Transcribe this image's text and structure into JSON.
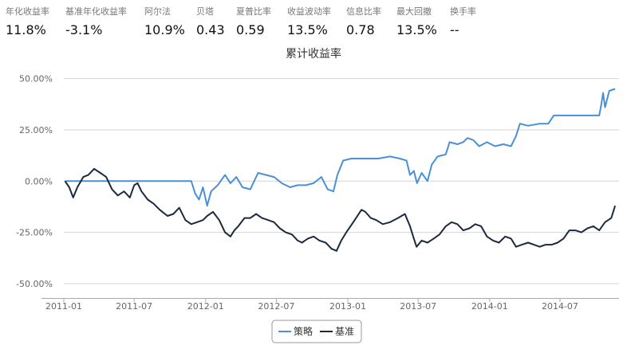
{
  "metrics": [
    {
      "label": "年化收益率",
      "value": "11.8%"
    },
    {
      "label": "基准年化收益率",
      "value": "-3.1%"
    },
    {
      "label": "阿尔法",
      "value": "10.9%"
    },
    {
      "label": "贝塔",
      "value": "0.43"
    },
    {
      "label": "夏普比率",
      "value": "0.59"
    },
    {
      "label": "收益波动率",
      "value": "13.5%"
    },
    {
      "label": "信息比率",
      "value": "0.78"
    },
    {
      "label": "最大回撤",
      "value": "13.5%"
    },
    {
      "label": "换手率",
      "value": "--"
    }
  ],
  "chart_data": {
    "type": "line",
    "title": "累计收益率",
    "y_ticks": [
      "50.00%",
      "25.00%",
      "0.00%",
      "-25.00%",
      "-50.00%"
    ],
    "y_tick_values": [
      50,
      25,
      0,
      -25,
      -50
    ],
    "ylim": [
      -57,
      58
    ],
    "xlim": [
      "2011-01-01",
      "2014-11-30"
    ],
    "x_ticks": [
      "2011-01",
      "2011-07",
      "2012-01",
      "2012-07",
      "2013-01",
      "2013-07",
      "2014-01",
      "2014-07"
    ],
    "x_tick_dates": [
      "2011-01-01",
      "2011-07-01",
      "2012-01-01",
      "2012-07-01",
      "2013-01-01",
      "2013-07-01",
      "2014-01-01",
      "2014-07-01"
    ],
    "grid": true,
    "legend_position": "bottom-center",
    "series": [
      {
        "name": "策略",
        "color": "#4a90d9",
        "points": [
          [
            "2011-01-04",
            0
          ],
          [
            "2011-11-25",
            0
          ],
          [
            "2011-12-05",
            -6
          ],
          [
            "2011-12-15",
            -9
          ],
          [
            "2011-12-25",
            -3
          ],
          [
            "2012-01-05",
            -12
          ],
          [
            "2012-01-15",
            -5
          ],
          [
            "2012-02-01",
            -2
          ],
          [
            "2012-02-20",
            3
          ],
          [
            "2012-03-05",
            -1
          ],
          [
            "2012-03-20",
            2
          ],
          [
            "2012-04-05",
            -3
          ],
          [
            "2012-04-25",
            -4
          ],
          [
            "2012-05-15",
            4
          ],
          [
            "2012-06-05",
            3
          ],
          [
            "2012-06-25",
            2
          ],
          [
            "2012-07-15",
            -1
          ],
          [
            "2012-08-05",
            -3
          ],
          [
            "2012-08-25",
            -2
          ],
          [
            "2012-09-15",
            -2
          ],
          [
            "2012-10-05",
            -1
          ],
          [
            "2012-10-25",
            2
          ],
          [
            "2012-11-10",
            -4
          ],
          [
            "2012-11-25",
            -5
          ],
          [
            "2012-12-05",
            3
          ],
          [
            "2012-12-20",
            10
          ],
          [
            "2013-01-10",
            11
          ],
          [
            "2013-02-15",
            11
          ],
          [
            "2013-03-20",
            11
          ],
          [
            "2013-04-20",
            12
          ],
          [
            "2013-05-15",
            11
          ],
          [
            "2013-06-01",
            10
          ],
          [
            "2013-06-10",
            3
          ],
          [
            "2013-06-20",
            5
          ],
          [
            "2013-06-28",
            -1
          ],
          [
            "2013-07-10",
            4
          ],
          [
            "2013-07-25",
            0
          ],
          [
            "2013-08-05",
            8
          ],
          [
            "2013-08-20",
            12
          ],
          [
            "2013-09-10",
            13
          ],
          [
            "2013-09-20",
            19
          ],
          [
            "2013-10-10",
            18
          ],
          [
            "2013-10-25",
            19
          ],
          [
            "2013-11-05",
            21
          ],
          [
            "2013-11-20",
            20
          ],
          [
            "2013-12-05",
            17
          ],
          [
            "2013-12-25",
            19
          ],
          [
            "2014-01-15",
            17
          ],
          [
            "2014-02-05",
            18
          ],
          [
            "2014-02-25",
            17
          ],
          [
            "2014-03-10",
            22
          ],
          [
            "2014-03-20",
            28
          ],
          [
            "2014-04-10",
            27
          ],
          [
            "2014-05-10",
            28
          ],
          [
            "2014-06-01",
            28
          ],
          [
            "2014-06-15",
            32
          ],
          [
            "2014-09-20",
            32
          ],
          [
            "2014-10-10",
            32
          ],
          [
            "2014-10-15",
            37
          ],
          [
            "2014-10-20",
            43
          ],
          [
            "2014-10-25",
            36
          ],
          [
            "2014-11-05",
            44
          ],
          [
            "2014-11-20",
            45
          ]
        ]
      },
      {
        "name": "基准",
        "color": "#1b2a3e",
        "points": [
          [
            "2011-01-04",
            0
          ],
          [
            "2011-01-15",
            -3
          ],
          [
            "2011-01-25",
            -8
          ],
          [
            "2011-02-05",
            -3
          ],
          [
            "2011-02-20",
            2
          ],
          [
            "2011-03-05",
            3
          ],
          [
            "2011-03-20",
            6
          ],
          [
            "2011-04-05",
            4
          ],
          [
            "2011-04-20",
            2
          ],
          [
            "2011-05-05",
            -4
          ],
          [
            "2011-05-20",
            -7
          ],
          [
            "2011-06-05",
            -5
          ],
          [
            "2011-06-20",
            -8
          ],
          [
            "2011-07-01",
            -2
          ],
          [
            "2011-07-10",
            -1
          ],
          [
            "2011-07-20",
            -5
          ],
          [
            "2011-08-05",
            -9
          ],
          [
            "2011-08-20",
            -11
          ],
          [
            "2011-09-05",
            -14
          ],
          [
            "2011-09-25",
            -17
          ],
          [
            "2011-10-10",
            -16
          ],
          [
            "2011-10-25",
            -13
          ],
          [
            "2011-11-10",
            -19
          ],
          [
            "2011-11-25",
            -21
          ],
          [
            "2011-12-10",
            -20
          ],
          [
            "2011-12-25",
            -19
          ],
          [
            "2012-01-05",
            -17
          ],
          [
            "2012-01-20",
            -15
          ],
          [
            "2012-02-05",
            -19
          ],
          [
            "2012-02-20",
            -25
          ],
          [
            "2012-03-05",
            -27
          ],
          [
            "2012-03-15",
            -24
          ],
          [
            "2012-03-25",
            -22
          ],
          [
            "2012-04-10",
            -18
          ],
          [
            "2012-04-25",
            -18
          ],
          [
            "2012-05-10",
            -16
          ],
          [
            "2012-05-25",
            -18
          ],
          [
            "2012-06-10",
            -19
          ],
          [
            "2012-06-25",
            -20
          ],
          [
            "2012-07-10",
            -23
          ],
          [
            "2012-07-25",
            -25
          ],
          [
            "2012-08-10",
            -26
          ],
          [
            "2012-08-25",
            -29
          ],
          [
            "2012-09-05",
            -30
          ],
          [
            "2012-09-20",
            -28
          ],
          [
            "2012-10-05",
            -27
          ],
          [
            "2012-10-20",
            -29
          ],
          [
            "2012-11-05",
            -30
          ],
          [
            "2012-11-20",
            -33
          ],
          [
            "2012-12-03",
            -34
          ],
          [
            "2012-12-15",
            -29
          ],
          [
            "2012-12-28",
            -25
          ],
          [
            "2013-01-15",
            -20
          ],
          [
            "2013-02-05",
            -14
          ],
          [
            "2013-02-15",
            -15
          ],
          [
            "2013-03-01",
            -18
          ],
          [
            "2013-03-15",
            -19
          ],
          [
            "2013-04-01",
            -21
          ],
          [
            "2013-04-20",
            -20
          ],
          [
            "2013-05-10",
            -18
          ],
          [
            "2013-05-28",
            -16
          ],
          [
            "2013-06-10",
            -22
          ],
          [
            "2013-06-20",
            -28
          ],
          [
            "2013-06-27",
            -32
          ],
          [
            "2013-07-10",
            -29
          ],
          [
            "2013-07-25",
            -30
          ],
          [
            "2013-08-10",
            -28
          ],
          [
            "2013-08-25",
            -26
          ],
          [
            "2013-09-10",
            -22
          ],
          [
            "2013-09-25",
            -20
          ],
          [
            "2013-10-10",
            -21
          ],
          [
            "2013-10-25",
            -24
          ],
          [
            "2013-11-10",
            -23
          ],
          [
            "2013-11-25",
            -21
          ],
          [
            "2013-12-10",
            -22
          ],
          [
            "2013-12-25",
            -27
          ],
          [
            "2014-01-10",
            -29
          ],
          [
            "2014-01-25",
            -30
          ],
          [
            "2014-02-10",
            -27
          ],
          [
            "2014-02-25",
            -28
          ],
          [
            "2014-03-10",
            -32
          ],
          [
            "2014-03-25",
            -31
          ],
          [
            "2014-04-10",
            -30
          ],
          [
            "2014-04-25",
            -31
          ],
          [
            "2014-05-10",
            -32
          ],
          [
            "2014-05-25",
            -31
          ],
          [
            "2014-06-10",
            -31
          ],
          [
            "2014-06-25",
            -30
          ],
          [
            "2014-07-10",
            -28
          ],
          [
            "2014-07-25",
            -24
          ],
          [
            "2014-08-10",
            -24
          ],
          [
            "2014-08-25",
            -25
          ],
          [
            "2014-09-10",
            -23
          ],
          [
            "2014-09-25",
            -22
          ],
          [
            "2014-10-10",
            -24
          ],
          [
            "2014-10-25",
            -20
          ],
          [
            "2014-11-10",
            -18
          ],
          [
            "2014-11-20",
            -12
          ]
        ]
      }
    ]
  }
}
